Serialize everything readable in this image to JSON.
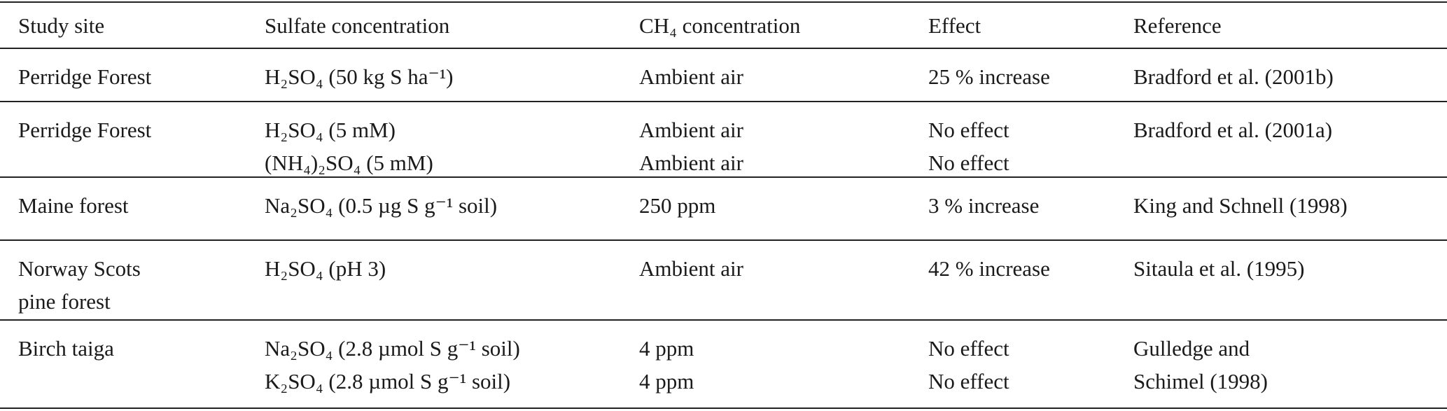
{
  "table": {
    "header": [
      "Study site",
      "Sulfate concentration",
      "CH₄ concentration",
      "Effect",
      "Reference"
    ],
    "rows": [
      [
        [
          "Perridge Forest"
        ],
        [
          "H₂SO₄ (50 kg S ha⁻¹)"
        ],
        [
          "Ambient air"
        ],
        [
          "25 % increase"
        ],
        [
          "Bradford et al. (2001b)"
        ]
      ],
      [
        [
          "Perridge Forest"
        ],
        [
          "H₂SO₄ (5 mM)",
          "(NH₄)₂SO₄ (5 mM)"
        ],
        [
          "Ambient air",
          "Ambient air"
        ],
        [
          "No effect",
          "No effect"
        ],
        [
          "Bradford et al. (2001a)"
        ]
      ],
      [
        [
          "Maine forest"
        ],
        [
          "Na₂SO₄ (0.5 µg S g⁻¹ soil)"
        ],
        [
          "250 ppm"
        ],
        [
          "3 % increase"
        ],
        [
          "King and Schnell (1998)"
        ]
      ],
      [
        [
          "Norway Scots",
          "pine forest"
        ],
        [
          "H₂SO₄ (pH 3)"
        ],
        [
          "Ambient air"
        ],
        [
          "42 % increase"
        ],
        [
          "Sitaula et al. (1995)"
        ]
      ],
      [
        [
          "Birch taiga"
        ],
        [
          "Na₂SO₄ (2.8 µmol S g⁻¹ soil)",
          "K₂SO₄ (2.8 µmol S g⁻¹ soil)"
        ],
        [
          "4 ppm",
          "4 ppm"
        ],
        [
          "No effect",
          "No effect"
        ],
        [
          "Gulledge and",
          "Schimel (1998)"
        ]
      ]
    ]
  }
}
